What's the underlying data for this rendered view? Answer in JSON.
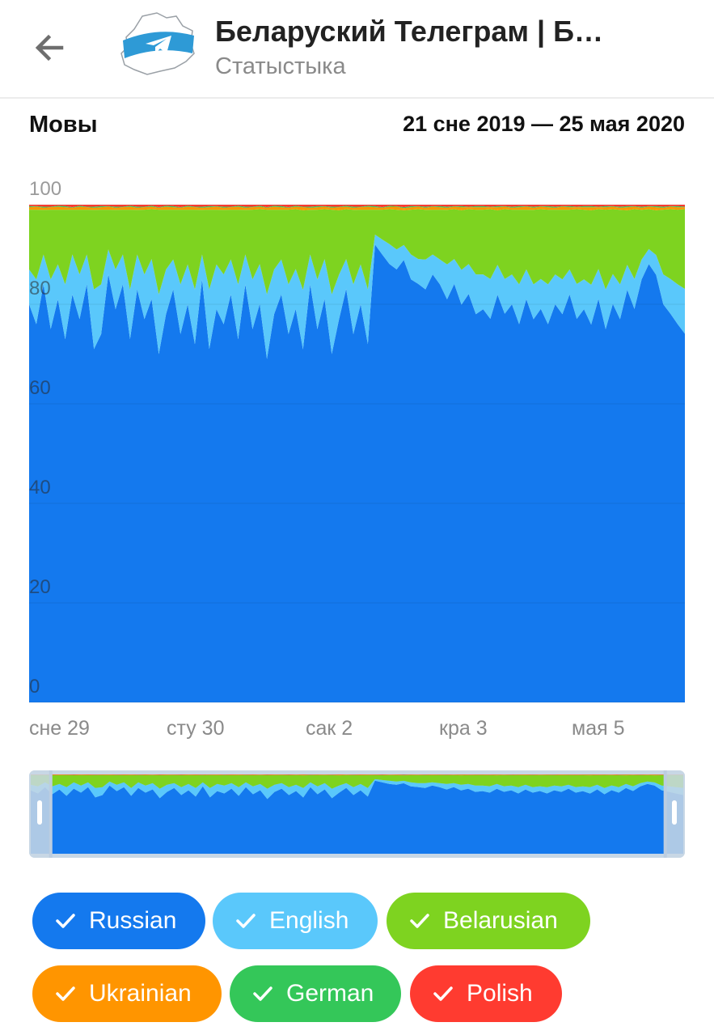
{
  "header": {
    "title": "Беларуский Телеграм | Б…",
    "subtitle": "Статыстыка",
    "back_icon": "arrow-left-icon",
    "avatar_icon": "belarus-map-telegram-logo"
  },
  "section": {
    "title": "Мовы",
    "range": "21 сне 2019 — 25 мая 2020"
  },
  "chart_data": {
    "type": "area",
    "stacked": true,
    "percentage": true,
    "ylim": [
      0,
      100
    ],
    "y_ticks": [
      "100",
      "80",
      "60",
      "40",
      "20",
      "0"
    ],
    "x_ticks": [
      "сне 29",
      "сту 30",
      "сак 2",
      "кра 3",
      "мая 5"
    ],
    "grid": true,
    "series": [
      {
        "name": "Russian",
        "color": "#1479ee",
        "values": [
          80,
          76,
          84,
          75,
          81,
          73,
          82,
          77,
          84,
          71,
          74,
          86,
          79,
          84,
          73,
          83,
          77,
          81,
          70,
          78,
          83,
          74,
          80,
          72,
          85,
          71,
          79,
          76,
          82,
          73,
          84,
          75,
          80,
          69,
          78,
          82,
          74,
          79,
          71,
          84,
          75,
          81,
          70,
          77,
          83,
          74,
          80,
          72,
          92,
          90,
          88,
          87,
          89,
          85,
          84,
          83,
          86,
          84,
          81,
          84,
          80,
          82,
          78,
          79,
          77,
          82,
          78,
          80,
          76,
          81,
          77,
          79,
          76,
          80,
          78,
          82,
          77,
          79,
          76,
          81,
          75,
          80,
          77,
          83,
          79,
          85,
          88,
          86,
          80,
          78,
          76,
          74
        ]
      },
      {
        "name": "English",
        "color": "#5ac8fb",
        "values": [
          7,
          9,
          6,
          10,
          7,
          11,
          8,
          9,
          6,
          12,
          10,
          5,
          8,
          6,
          10,
          7,
          9,
          8,
          12,
          9,
          6,
          10,
          8,
          11,
          5,
          12,
          9,
          10,
          7,
          11,
          6,
          10,
          8,
          13,
          9,
          7,
          10,
          8,
          12,
          6,
          10,
          8,
          12,
          9,
          6,
          10,
          8,
          11,
          2,
          3,
          4,
          4,
          3,
          5,
          5,
          6,
          4,
          5,
          7,
          5,
          7,
          6,
          8,
          7,
          8,
          6,
          7,
          6,
          8,
          6,
          7,
          6,
          8,
          6,
          7,
          5,
          7,
          6,
          8,
          6,
          8,
          6,
          7,
          5,
          6,
          4,
          3,
          4,
          6,
          7,
          8,
          9
        ]
      },
      {
        "name": "Belarusian",
        "color": "#7ed320",
        "values": [
          12,
          14,
          9,
          14,
          11,
          15,
          9,
          13,
          9,
          16,
          15,
          8,
          12,
          9,
          16,
          9,
          13,
          10,
          17,
          12,
          10,
          15,
          11,
          16,
          9,
          16,
          11,
          13,
          10,
          15,
          9,
          14,
          11,
          17,
          12,
          10,
          15,
          12,
          16,
          9,
          14,
          10,
          17,
          13,
          10,
          15,
          11,
          16,
          5,
          6,
          7,
          8,
          7,
          9,
          10,
          10,
          9,
          10,
          11,
          10,
          12,
          11,
          13,
          13,
          14,
          11,
          14,
          13,
          15,
          12,
          15,
          14,
          15,
          13,
          14,
          12,
          15,
          14,
          15,
          12,
          16,
          13,
          15,
          11,
          14,
          10,
          8,
          9,
          13,
          14,
          15,
          16
        ]
      },
      {
        "name": "Ukrainian",
        "color": "#ff9500",
        "values": [
          0.5,
          0.6,
          0.4,
          0.5,
          0.6,
          0.5,
          0.4,
          0.6,
          0.5,
          0.4,
          0.5,
          0.6,
          0.4,
          0.5,
          0.6,
          0.4,
          0.5,
          0.5,
          0.4,
          0.6,
          0.5,
          0.4,
          0.6,
          0.5,
          0.4,
          0.5,
          0.6,
          0.4,
          0.5,
          0.6,
          0.4,
          0.5,
          0.5,
          0.4,
          0.6,
          0.5,
          0.4,
          0.5,
          0.6,
          0.4,
          0.5,
          0.5,
          0.4,
          0.6,
          0.5,
          0.4,
          0.5,
          0.6,
          0.5,
          0.4,
          0.5,
          0.6,
          0.4,
          0.5,
          0.5,
          0.4,
          0.6,
          0.5,
          0.4,
          0.5,
          0.6,
          0.4,
          0.5,
          0.5,
          0.4,
          0.6,
          0.5,
          0.4,
          0.5,
          0.6,
          0.4,
          0.5,
          0.5,
          0.4,
          0.6,
          0.5,
          0.4,
          0.5,
          0.6,
          0.4,
          0.5,
          0.5,
          0.4,
          0.6,
          0.5,
          0.4,
          0.5,
          0.6,
          0.4,
          0.5,
          0.5,
          0.4
        ]
      },
      {
        "name": "German",
        "color": "#34c759",
        "values": [
          0.2,
          0.1,
          0.2,
          0.1,
          0.2,
          0.2,
          0.1,
          0.2,
          0.1,
          0.2,
          0.2,
          0.1,
          0.2,
          0.1,
          0.2,
          0.2,
          0.1,
          0.2,
          0.1,
          0.2,
          0.2,
          0.1,
          0.2,
          0.1,
          0.2,
          0.2,
          0.1,
          0.2,
          0.1,
          0.2,
          0.2,
          0.1,
          0.2,
          0.1,
          0.2,
          0.2,
          0.1,
          0.2,
          0.1,
          0.2,
          0.2,
          0.1,
          0.2,
          0.1,
          0.2,
          0.2,
          0.1,
          0.2,
          0.2,
          0.1,
          0.2,
          0.1,
          0.2,
          0.2,
          0.1,
          0.2,
          0.1,
          0.2,
          0.2,
          0.1,
          0.2,
          0.1,
          0.2,
          0.2,
          0.1,
          0.2,
          0.1,
          0.2,
          0.2,
          0.1,
          0.2,
          0.1,
          0.2,
          0.2,
          0.1,
          0.2,
          0.1,
          0.2,
          0.2,
          0.1,
          0.2,
          0.1,
          0.2,
          0.2,
          0.1,
          0.2,
          0.1,
          0.2,
          0.2,
          0.1,
          0.2,
          0.1
        ]
      },
      {
        "name": "Polish",
        "color": "#ff3b30",
        "values": [
          0.3,
          0.3,
          0.4,
          0.4,
          0.2,
          0.3,
          0.5,
          0.2,
          0.4,
          0.4,
          0.3,
          0.3,
          0.4,
          0.4,
          0.2,
          0.4,
          0.4,
          0.2,
          0.5,
          0.2,
          0.3,
          0.5,
          0.2,
          0.4,
          0.4,
          0.3,
          0.3,
          0.4,
          0.4,
          0.2,
          0.4,
          0.4,
          0.2,
          0.5,
          0.2,
          0.3,
          0.5,
          0.2,
          0.4,
          0.4,
          0.3,
          0.3,
          0.4,
          0.4,
          0.2,
          0.4,
          0.4,
          0.2,
          0.3,
          0.5,
          0.2,
          0.3,
          0.5,
          0.3,
          0.3,
          0.4,
          0.3,
          0.3,
          0.4,
          0.3,
          0.3,
          0.4,
          0.3,
          0.3,
          0.4,
          0.3,
          0.3,
          0.4,
          0.3,
          0.3,
          0.4,
          0.3,
          0.3,
          0.4,
          0.3,
          0.3,
          0.4,
          0.3,
          0.3,
          0.4,
          0.3,
          0.3,
          0.4,
          0.3,
          0.3,
          0.4,
          0.3,
          0.3,
          0.4,
          0.3,
          0.3,
          0.4
        ]
      }
    ]
  },
  "navigator": {
    "range_selected": [
      0.033,
      0.97
    ]
  }
}
